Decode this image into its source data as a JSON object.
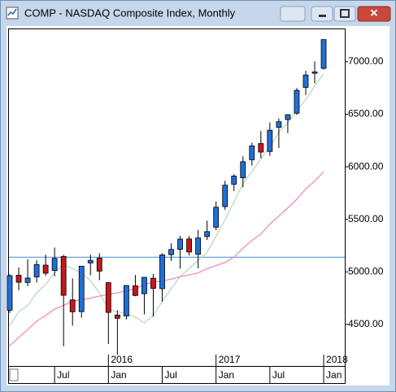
{
  "window": {
    "title": "COMP - NASDAQ Composite Index, Monthly"
  },
  "chart_data": {
    "type": "candlestick",
    "categories": [
      null,
      null,
      null,
      null,
      null,
      "Jul",
      null,
      null,
      null,
      null,
      null,
      "Jan",
      null,
      null,
      null,
      null,
      null,
      "Jul",
      null,
      null,
      null,
      null,
      null,
      "Jan",
      null,
      null,
      null,
      null,
      null,
      "Jul",
      null,
      null,
      null,
      null,
      null,
      "Jan"
    ],
    "years": [
      null,
      null,
      null,
      null,
      null,
      null,
      null,
      null,
      null,
      null,
      null,
      "2016",
      null,
      null,
      null,
      null,
      null,
      null,
      null,
      null,
      null,
      null,
      null,
      "2017",
      null,
      null,
      null,
      null,
      null,
      null,
      null,
      null,
      null,
      null,
      null,
      "2018"
    ],
    "open": [
      4635,
      4968,
      4899,
      4952,
      5064,
      5013,
      5146,
      4733,
      4621,
      5085,
      5131,
      4897,
      4589,
      4580,
      4867,
      4792,
      4939,
      4840,
      5164,
      5214,
      5313,
      5168,
      5336,
      5425,
      5621,
      5834,
      5895,
      6067,
      6221,
      6146,
      6376,
      6450,
      6510,
      6756,
      6890,
      6937
    ],
    "high": [
      4977,
      5042,
      5120,
      5111,
      5164,
      5231,
      5163,
      4938,
      5031,
      5163,
      5177,
      4903,
      4633,
      4870,
      4970,
      4949,
      4980,
      5176,
      5272,
      5343,
      5342,
      5399,
      5487,
      5670,
      5867,
      5929,
      6099,
      6230,
      6341,
      6422,
      6460,
      6495,
      6749,
      6914,
      7003,
      7211
    ],
    "low": [
      4610,
      4825,
      4863,
      4899,
      4961,
      4957,
      4292,
      4487,
      4564,
      4967,
      4920,
      4313,
      4210,
      4547,
      4768,
      4596,
      4574,
      4715,
      5104,
      5031,
      5156,
      5034,
      5304,
      5397,
      5590,
      5769,
      5805,
      6011,
      6081,
      6104,
      6178,
      6321,
      6494,
      6684,
      6794,
      6924
    ],
    "close": [
      4964,
      4901,
      4941,
      5070,
      4987,
      5128,
      4777,
      4620,
      5054,
      5109,
      5007,
      4614,
      4558,
      4870,
      4775,
      4948,
      4843,
      5162,
      5213,
      5312,
      5189,
      5323,
      5383,
      5615,
      5825,
      5912,
      6048,
      6199,
      6140,
      6348,
      6429,
      6496,
      6728,
      6874,
      6903,
      7211
    ],
    "up_color": "#1f6fd8",
    "down_color": "#c8161d",
    "series": [
      {
        "color": "#b9dbb9",
        "values": [
          4490,
          4620,
          4680,
          4800,
          4880,
          4990,
          5070,
          5030,
          4990,
          4915,
          4800,
          4645,
          4620,
          4605,
          4570,
          4515,
          4585,
          4720,
          4840,
          4955,
          5030,
          5110,
          5185,
          5340,
          5495,
          5665,
          5840,
          5955,
          6075,
          6190,
          6330,
          6420,
          6535,
          6640,
          6770,
          6885
        ]
      },
      {
        "color": "#f08cba",
        "values": [
          4297,
          4375,
          4450,
          4530,
          4585,
          4645,
          4680,
          4720,
          4735,
          4750,
          4770,
          4785,
          4800,
          4820,
          4840,
          4880,
          4900,
          4915,
          4930,
          4955,
          4970,
          4990,
          5030,
          5060,
          5090,
          5140,
          5225,
          5300,
          5360,
          5455,
          5530,
          5610,
          5690,
          5790,
          5865,
          5955
        ]
      }
    ],
    "hline": {
      "value": 5139,
      "color": "#3b8fd8"
    },
    "ylim": [
      4104,
      7309
    ],
    "yticks": [
      {
        "value": 4500,
        "label": "4500.00"
      },
      {
        "value": 5000,
        "label": "5000.00"
      },
      {
        "value": 5500,
        "label": "5500.00"
      },
      {
        "value": 6000,
        "label": "6000.00"
      },
      {
        "value": 6500,
        "label": "6500.00"
      },
      {
        "value": 7000,
        "label": "7000.00"
      }
    ]
  }
}
